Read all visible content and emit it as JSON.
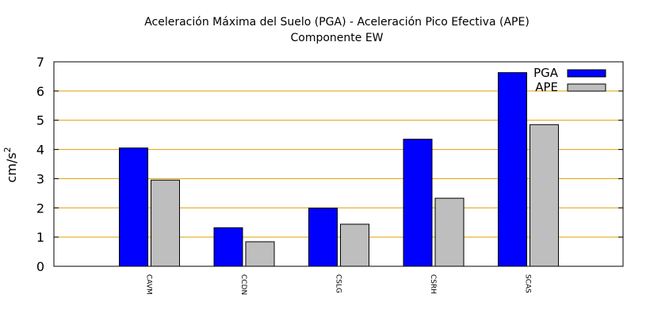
{
  "chart_data": {
    "type": "bar",
    "title": "Aceleración Máxima del Suelo (PGA) -  Aceleración Pico Efectiva (APE)",
    "subtitle": "Componente EW",
    "xlabel": "",
    "ylabel": "cm/s",
    "ylabel_superscript": "2",
    "categories": [
      "CAVM",
      "CCDN",
      "CSLG",
      "CSRH",
      "SCAS"
    ],
    "series": [
      {
        "name": "PGA",
        "color": "#0000ff",
        "values": [
          4.05,
          1.32,
          1.99,
          4.35,
          6.63
        ]
      },
      {
        "name": "APE",
        "color": "#bebebe",
        "values": [
          2.95,
          0.84,
          1.44,
          2.33,
          4.85
        ]
      }
    ],
    "ylim": [
      0,
      7
    ],
    "yticks": [
      "0",
      "1",
      "2",
      "3",
      "4",
      "5",
      "6",
      "7"
    ],
    "grid": true,
    "grid_color": "#e0a000",
    "legend_position": "top-right"
  }
}
